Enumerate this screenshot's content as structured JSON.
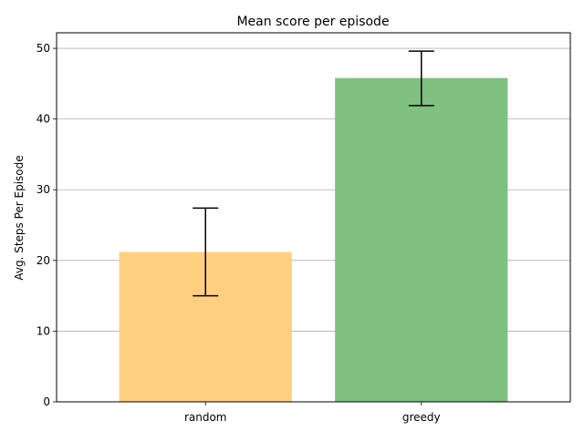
{
  "chart_data": {
    "type": "bar",
    "title": "Mean score per episode",
    "xlabel": "",
    "ylabel": "Avg. Steps Per Episode",
    "categories": [
      "random",
      "greedy"
    ],
    "values": [
      21.2,
      45.8
    ],
    "error_bars": [
      {
        "low": 15.0,
        "high": 27.4
      },
      {
        "low": 41.9,
        "high": 49.6
      }
    ],
    "colors": [
      "#ffd080",
      "#80c080"
    ],
    "ylim": [
      0,
      52.2
    ],
    "yticks": [
      0,
      10,
      20,
      30,
      40,
      50
    ],
    "grid": "y-axis",
    "legend": "none"
  }
}
